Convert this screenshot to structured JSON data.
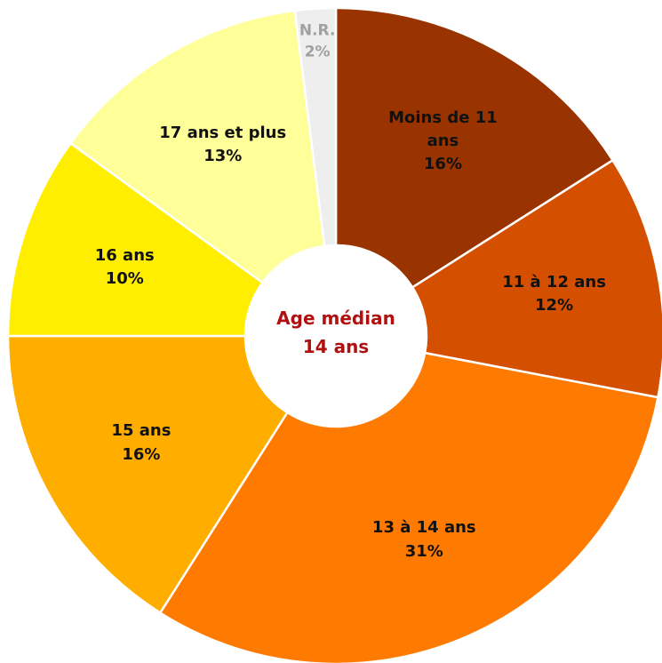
{
  "chart_data": {
    "type": "donut",
    "categories": [
      "Moins de 11 ans",
      "11 à 12 ans",
      "13 à 14 ans",
      "15 ans",
      "16 ans",
      "17 ans et plus",
      "N.R."
    ],
    "values": [
      16,
      12,
      31,
      16,
      10,
      13,
      2
    ],
    "value_labels": [
      "16%",
      "12%",
      "31%",
      "16%",
      "10%",
      "13%",
      "2%"
    ],
    "colors": [
      "#993300",
      "#d45000",
      "#ff7a00",
      "#ffae00",
      "#ffee00",
      "#ffff99",
      "#eeeeee"
    ],
    "center_text": [
      "Age médian",
      "14 ans"
    ]
  }
}
